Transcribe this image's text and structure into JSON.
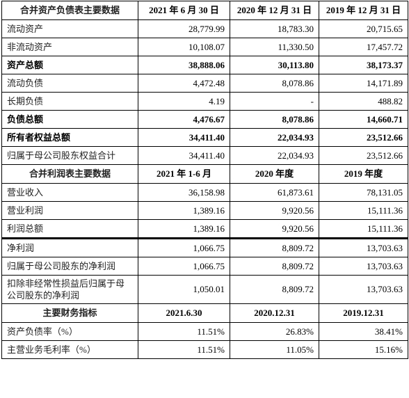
{
  "balance": {
    "header": [
      "合并资产负债表主要数据",
      "2021 年 6 月 30 日",
      "2020 年 12 月 31 日",
      "2019 年 12 月 31 日"
    ],
    "rows": [
      {
        "label": "流动资产",
        "values": [
          "28,779.99",
          "18,783.30",
          "20,715.65"
        ],
        "bold": false
      },
      {
        "label": "非流动资产",
        "values": [
          "10,108.07",
          "11,330.50",
          "17,457.72"
        ],
        "bold": false
      },
      {
        "label": "资产总额",
        "values": [
          "38,888.06",
          "30,113.80",
          "38,173.37"
        ],
        "bold": true
      },
      {
        "label": "流动负债",
        "values": [
          "4,472.48",
          "8,078.86",
          "14,171.89"
        ],
        "bold": false
      },
      {
        "label": "长期负债",
        "values": [
          "4.19",
          "-",
          "488.82"
        ],
        "bold": false
      },
      {
        "label": "负债总额",
        "values": [
          "4,476.67",
          "8,078.86",
          "14,660.71"
        ],
        "bold": true
      },
      {
        "label": "所有者权益总额",
        "values": [
          "34,411.40",
          "22,034.93",
          "23,512.66"
        ],
        "bold": true
      },
      {
        "label": "归属于母公司股东权益合计",
        "values": [
          "34,411.40",
          "22,034.93",
          "23,512.66"
        ],
        "bold": false
      }
    ]
  },
  "income": {
    "header": [
      "合并利润表主要数据",
      "2021 年 1-6 月",
      "2020 年度",
      "2019 年度"
    ],
    "rows": [
      {
        "label": "营业收入",
        "values": [
          "36,158.98",
          "61,873.61",
          "78,131.05"
        ]
      },
      {
        "label": "营业利润",
        "values": [
          "1,389.16",
          "9,920.56",
          "15,111.36"
        ]
      },
      {
        "label": "利润总额",
        "values": [
          "1,389.16",
          "9,920.56",
          "15,111.36"
        ]
      },
      {
        "label": "净利润",
        "values": [
          "1,066.75",
          "8,809.72",
          "13,703.63"
        ]
      },
      {
        "label": "归属于母公司股东的净利润",
        "values": [
          "1,066.75",
          "8,809.72",
          "13,703.63"
        ]
      },
      {
        "label": "扣除非经常性损益后归属于母公司股东的净利润",
        "values": [
          "1,050.01",
          "8,809.72",
          "13,703.63"
        ]
      }
    ]
  },
  "indicators": {
    "header": [
      "主要财务指标",
      "2021.6.30",
      "2020.12.31",
      "2019.12.31"
    ],
    "rows": [
      {
        "label": "资产负债率（%）",
        "values": [
          "11.51%",
          "26.83%",
          "38.41%"
        ]
      },
      {
        "label": "主营业务毛利率（%）",
        "values": [
          "11.51%",
          "11.05%",
          "15.16%"
        ]
      }
    ]
  }
}
